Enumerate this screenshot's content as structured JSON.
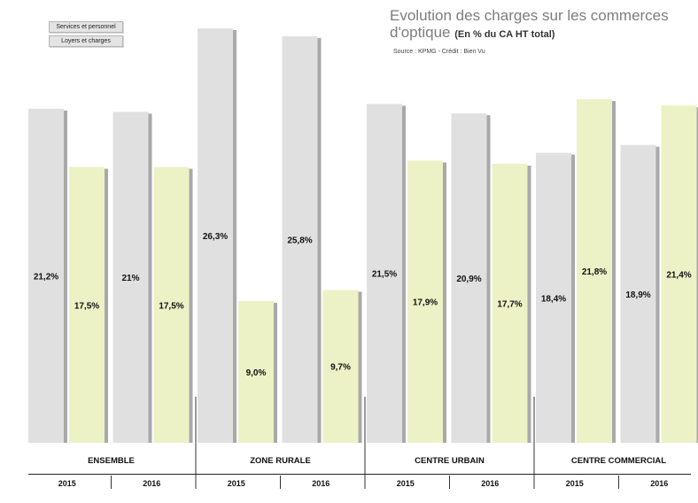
{
  "legend": {
    "item1": "Services et personnel",
    "item2": "Loyers et charges"
  },
  "header": {
    "title": "Evolution des charges sur les commerces d'optique",
    "subtitle": "(En % du CA HT total)",
    "source": "Source : KPMG - Crédit : Bien Vu"
  },
  "colors": {
    "services": "#e0e0e0",
    "loyers": "#edf1c6",
    "shadow": "#a9a9a9"
  },
  "chart_data": {
    "type": "bar",
    "groups": [
      {
        "name": "ENSEMBLE",
        "years": [
          {
            "year": "2015",
            "services": 21.2,
            "services_label": "21,2%",
            "loyers": 17.5,
            "loyers_label": "17,5%"
          },
          {
            "year": "2016",
            "services": 21.0,
            "services_label": "21%",
            "loyers": 17.5,
            "loyers_label": "17,5%"
          }
        ]
      },
      {
        "name": "ZONE RURALE",
        "years": [
          {
            "year": "2015",
            "services": 26.3,
            "services_label": "26,3%",
            "loyers": 9.0,
            "loyers_label": "9,0%"
          },
          {
            "year": "2016",
            "services": 25.8,
            "services_label": "25,8%",
            "loyers": 9.7,
            "loyers_label": "9,7%"
          }
        ]
      },
      {
        "name": "CENTRE URBAIN",
        "years": [
          {
            "year": "2015",
            "services": 21.5,
            "services_label": "21,5%",
            "loyers": 17.9,
            "loyers_label": "17,9%"
          },
          {
            "year": "2016",
            "services": 20.9,
            "services_label": "20,9%",
            "loyers": 17.7,
            "loyers_label": "17,7%"
          }
        ]
      },
      {
        "name": "CENTRE COMMERCIAL",
        "years": [
          {
            "year": "2015",
            "services": 18.4,
            "services_label": "18,4%",
            "loyers": 21.8,
            "loyers_label": "21,8%"
          },
          {
            "year": "2016",
            "services": 18.9,
            "services_label": "18,9%",
            "loyers": 21.4,
            "loyers_label": "21,4%"
          }
        ]
      }
    ],
    "ylim": [
      0,
      26.3
    ]
  }
}
